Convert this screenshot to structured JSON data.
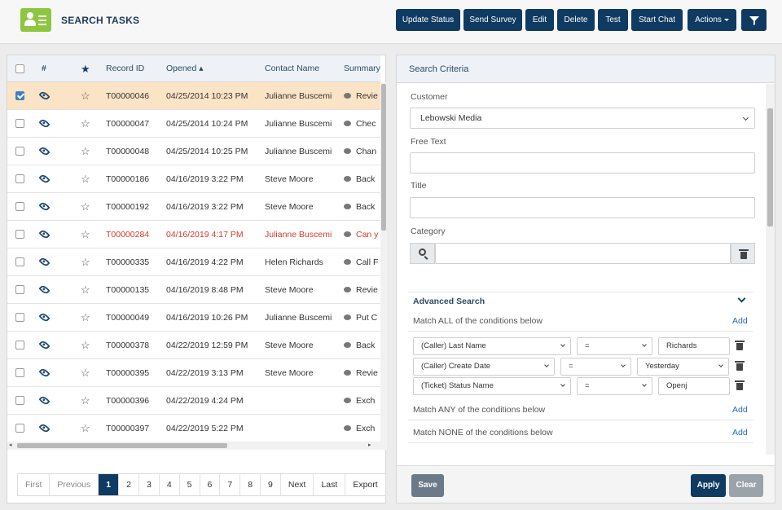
{
  "app": {
    "title": "SEARCH TASKS"
  },
  "toolbar": {
    "update_status": "Update Status",
    "send_survey": "Send Survey",
    "edit": "Edit",
    "delete": "Delete",
    "test": "Test",
    "start_chat": "Start Chat",
    "actions": "Actions"
  },
  "grid": {
    "columns": {
      "hash": "#",
      "record_id": "Record ID",
      "opened": "Opened ▴",
      "contact": "Contact Name",
      "summary": "Summary"
    },
    "rows": [
      {
        "id": "T00000046",
        "opened": "04/25/2014 10:23 PM",
        "contact": "Julianne Buscemi",
        "summary": "Revie"
      },
      {
        "id": "T00000047",
        "opened": "04/25/2014 10:24 PM",
        "contact": "Julianne Buscemi",
        "summary": "Chec"
      },
      {
        "id": "T00000048",
        "opened": "04/25/2014 10:25 PM",
        "contact": "Julianne Buscemi",
        "summary": "Chan"
      },
      {
        "id": "T00000186",
        "opened": "04/16/2019 3:22 PM",
        "contact": "Steve Moore",
        "summary": "Back"
      },
      {
        "id": "T00000192",
        "opened": "04/16/2019 3:22 PM",
        "contact": "Steve Moore",
        "summary": "Back"
      },
      {
        "id": "T00000284",
        "opened": "04/16/2019 4:17 PM",
        "contact": "Julianne Buscemi",
        "summary": "Can y"
      },
      {
        "id": "T00000335",
        "opened": "04/16/2019 4:22 PM",
        "contact": "Helen Richards",
        "summary": "Call F"
      },
      {
        "id": "T00000135",
        "opened": "04/16/2019 8:48 PM",
        "contact": "Steve Moore",
        "summary": "Revie"
      },
      {
        "id": "T00000049",
        "opened": "04/16/2019 10:26 PM",
        "contact": "Julianne Buscemi",
        "summary": "Put C"
      },
      {
        "id": "T00000378",
        "opened": "04/22/2019 12:59 PM",
        "contact": "Steve Moore",
        "summary": "Back"
      },
      {
        "id": "T00000395",
        "opened": "04/22/2019 3:13 PM",
        "contact": "Steve Moore",
        "summary": "Revie"
      },
      {
        "id": "T00000396",
        "opened": "04/22/2019 4:24 PM",
        "contact": "",
        "summary": "Exch"
      },
      {
        "id": "T00000397",
        "opened": "04/22/2019 5:22 PM",
        "contact": "",
        "summary": "Exch"
      }
    ]
  },
  "pager": {
    "first": "First",
    "previous": "Previous",
    "pages": [
      "1",
      "2",
      "3",
      "4",
      "5",
      "6",
      "7",
      "8",
      "9"
    ],
    "next": "Next",
    "last": "Last",
    "export": "Export"
  },
  "criteria": {
    "title": "Search Criteria",
    "customer_label": "Customer",
    "customer_value": "Lebowski Media",
    "free_text_label": "Free Text",
    "title_label": "Title",
    "category_label": "Category",
    "advanced": {
      "title": "Advanced Search",
      "match_all": "Match ALL of the conditions below",
      "match_any": "Match ANY of the conditions below",
      "match_none": "Match NONE of the conditions below",
      "add": "Add",
      "conditions": [
        {
          "field": "(Caller) Last Name",
          "op": "=",
          "value": "Richards"
        },
        {
          "field": "(Caller) Create Date",
          "op": "=",
          "value": "Yesterday"
        },
        {
          "field": "(Ticket) Status Name",
          "op": "=",
          "value": "Openj"
        }
      ]
    },
    "save": "Save",
    "apply": "Apply",
    "clear": "Clear"
  },
  "colors": {
    "primary": "#0f3a62",
    "selected_row": "#fbe3c6",
    "highlight_text": "#d33a2c",
    "logo": "#8dc63f"
  }
}
